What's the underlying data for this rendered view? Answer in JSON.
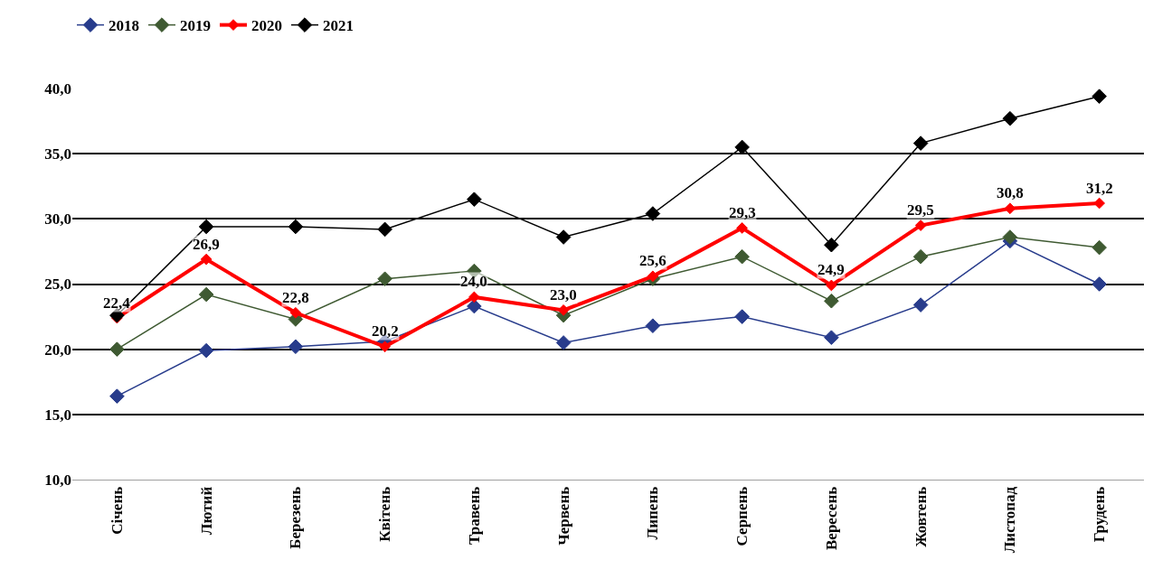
{
  "chart_data": {
    "type": "line",
    "categories": [
      "Січень",
      "Лютий",
      "Березень",
      "Квітень",
      "Травень",
      "Червень",
      "Липень",
      "Серпень",
      "Вересень",
      "Жовтень",
      "Листопад",
      "Грудень"
    ],
    "series": [
      {
        "name": "2018",
        "color": "#283c8c",
        "values": [
          16.4,
          19.9,
          20.2,
          20.6,
          23.3,
          20.5,
          21.8,
          22.5,
          20.9,
          23.4,
          28.3,
          25.0
        ]
      },
      {
        "name": "2019",
        "color": "#3f5a32",
        "values": [
          20.0,
          24.2,
          22.3,
          25.4,
          26.0,
          22.6,
          25.4,
          27.1,
          23.7,
          27.1,
          28.6,
          27.8
        ]
      },
      {
        "name": "2020",
        "color": "#ff0000",
        "values": [
          22.4,
          26.9,
          22.8,
          20.2,
          24.0,
          23.0,
          25.6,
          29.3,
          24.9,
          29.5,
          30.8,
          31.2
        ],
        "value_labels": [
          "22,4",
          "26,9",
          "22,8",
          "20,2",
          "24,0",
          "23,0",
          "25,6",
          "29,3",
          "24,9",
          "29,5",
          "30,8",
          "31,2"
        ]
      },
      {
        "name": "2021",
        "color": "#000000",
        "values": [
          22.6,
          29.4,
          29.4,
          29.2,
          31.5,
          28.6,
          30.4,
          35.5,
          28.0,
          35.8,
          37.7,
          39.4
        ]
      }
    ],
    "ylim": [
      10,
      40
    ],
    "yticks": [
      {
        "value": 10,
        "label": "10,0"
      },
      {
        "value": 15,
        "label": "15,0"
      },
      {
        "value": 20,
        "label": "20,0"
      },
      {
        "value": 25,
        "label": "25,0"
      },
      {
        "value": 30,
        "label": "30,0"
      },
      {
        "value": 35,
        "label": "35,0"
      },
      {
        "value": 40,
        "label": "40,0"
      }
    ],
    "grid": "y",
    "legend": "top left",
    "marker": "diamond",
    "line_style": "solid"
  }
}
